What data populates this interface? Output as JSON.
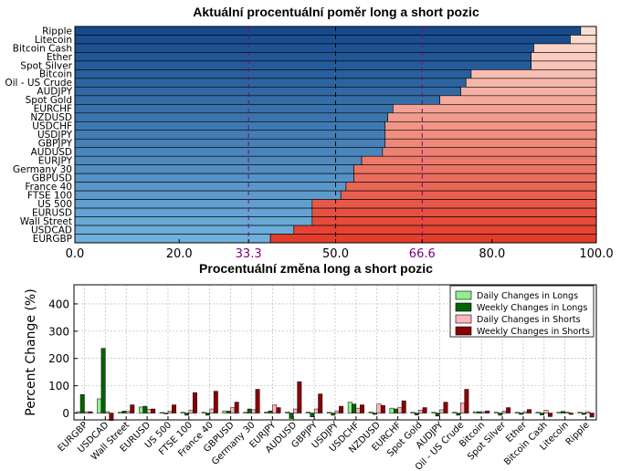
{
  "chart_data": [
    {
      "type": "bar",
      "orientation": "horizontal",
      "stacked": true,
      "title": "Aktuální procentuální poměr long a short pozic",
      "categories": [
        "Ripple",
        "Litecoin",
        "Bitcoin Cash",
        "Ether",
        "Spot Silver",
        "Bitcoin",
        "Oil - US Crude",
        "AUDJPY",
        "Spot Gold",
        "EURCHF",
        "NZDUSD",
        "USDCHF",
        "USDJPY",
        "GBPJPY",
        "AUDUSD",
        "EURJPY",
        "Germany 30",
        "GBPUSD",
        "France 40",
        "FTSE 100",
        "US 500",
        "EURUSD",
        "Wall Street",
        "USDCAD",
        "EURGBP"
      ],
      "series": [
        {
          "role": "long",
          "values": [
            97.0,
            95.0,
            88.0,
            87.5,
            87.5,
            76.0,
            75.0,
            74.0,
            70.0,
            61.0,
            60.0,
            59.5,
            59.5,
            59.5,
            59.0,
            55.0,
            53.5,
            53.5,
            52.0,
            51.0,
            45.5,
            45.5,
            45.5,
            42.0,
            37.5
          ]
        },
        {
          "role": "short",
          "values": [
            3.0,
            5.0,
            12.0,
            12.5,
            12.5,
            24.0,
            25.0,
            26.0,
            30.0,
            39.0,
            40.0,
            40.5,
            40.5,
            40.5,
            41.0,
            45.0,
            46.5,
            46.5,
            48.0,
            49.0,
            54.5,
            54.5,
            54.5,
            58.0,
            62.5
          ]
        }
      ],
      "xlim": [
        0,
        100
      ],
      "xticks": [
        "0.0",
        "20.0",
        "33.3",
        "50.0",
        "66.6",
        "80.0",
        "100.0"
      ],
      "highlight_ticks": [
        "33.3",
        "66.6"
      ],
      "reference_lines": [
        33.3,
        50.0,
        66.6
      ],
      "colors": {
        "long_dark": "#174a8c",
        "long_light": "#6fb0dc",
        "short_dark": "#e23d2c",
        "short_light": "#fde0d4",
        "reference": "#800080"
      }
    },
    {
      "type": "bar",
      "title": "Procentuální změna long a short pozic",
      "ylabel": "Percent Change (%)",
      "ylim": [
        -25,
        470
      ],
      "yticks": [
        "0",
        "100",
        "200",
        "300",
        "400"
      ],
      "grid": true,
      "legend_position": "top-right",
      "categories": [
        "EURGBP",
        "USDCAD",
        "Wall Street",
        "EURUSD",
        "US 500",
        "FTSE 100",
        "France 40",
        "GBPUSD",
        "Germany 30",
        "EURJPY",
        "AUDUSD",
        "GBPJPY",
        "USDJPY",
        "USDCHF",
        "NZDUSD",
        "EURCHF",
        "Spot Gold",
        "AUDJPY",
        "Oil - US Crude",
        "Bitcoin",
        "Spot Silver",
        "Ether",
        "Bitcoin Cash",
        "Litecoin",
        "Ripple"
      ],
      "series": [
        {
          "name": "Daily Changes in Longs",
          "color": "#90ee90",
          "values": [
            5,
            52,
            3,
            22,
            2,
            3,
            3,
            8,
            3,
            4,
            4,
            4,
            3,
            40,
            4,
            18,
            3,
            3,
            3,
            5,
            3,
            3,
            3,
            3,
            3
          ]
        },
        {
          "name": "Weekly Changes in Longs",
          "color": "#006400",
          "values": [
            68,
            237,
            7,
            25,
            -3,
            -8,
            -8,
            7,
            15,
            8,
            -20,
            -14,
            -8,
            33,
            -5,
            15,
            -7,
            -11,
            -8,
            5,
            -8,
            -5,
            -7,
            6,
            -5
          ]
        },
        {
          "name": "Daily Changes in Shorts",
          "color": "#ffb6c1",
          "values": [
            5,
            5,
            6,
            14,
            7,
            10,
            15,
            20,
            12,
            30,
            15,
            15,
            8,
            18,
            33,
            20,
            11,
            12,
            36,
            5,
            7,
            5,
            10,
            4,
            5
          ]
        },
        {
          "name": "Weekly Changes in Shorts",
          "color": "#8b0000",
          "values": [
            5,
            -27,
            30,
            15,
            30,
            75,
            80,
            40,
            87,
            20,
            115,
            70,
            25,
            30,
            28,
            45,
            20,
            40,
            87,
            8,
            20,
            13,
            -13,
            -5,
            -15
          ]
        }
      ]
    }
  ]
}
